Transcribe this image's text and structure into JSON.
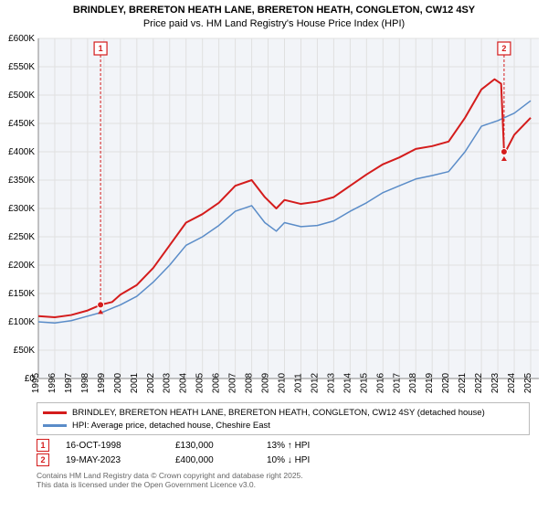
{
  "title_line1": "BRINDLEY, BRERETON HEATH LANE, BRERETON HEATH, CONGLETON, CW12 4SY",
  "title_line2": "Price paid vs. HM Land Registry's House Price Index (HPI)",
  "chart": {
    "type": "line",
    "background_color": "#ffffff",
    "plot_bg": "#f2f4f8",
    "grid_color": "#e0e0e0",
    "axis_color": "#888888",
    "x_years": [
      1995,
      1996,
      1997,
      1998,
      1999,
      2000,
      2001,
      2002,
      2003,
      2004,
      2005,
      2006,
      2007,
      2008,
      2009,
      2010,
      2011,
      2012,
      2013,
      2014,
      2015,
      2016,
      2017,
      2018,
      2019,
      2020,
      2021,
      2022,
      2023,
      2024,
      2025
    ],
    "y_ticks": [
      "£0",
      "£50K",
      "£100K",
      "£150K",
      "£200K",
      "£250K",
      "£300K",
      "£350K",
      "£400K",
      "£450K",
      "£500K",
      "£550K",
      "£600K"
    ],
    "ylim": [
      0,
      600
    ],
    "xlim": [
      1995,
      2025.5
    ],
    "y_step": 50,
    "series": [
      {
        "name": "property",
        "color": "#d41c1c",
        "width": 2,
        "points": [
          [
            1995,
            110
          ],
          [
            1996,
            108
          ],
          [
            1997,
            112
          ],
          [
            1998,
            120
          ],
          [
            1998.8,
            130
          ],
          [
            1999.5,
            135
          ],
          [
            2000,
            148
          ],
          [
            2001,
            165
          ],
          [
            2002,
            195
          ],
          [
            2003,
            235
          ],
          [
            2004,
            275
          ],
          [
            2005,
            290
          ],
          [
            2006,
            310
          ],
          [
            2007,
            340
          ],
          [
            2008,
            350
          ],
          [
            2008.8,
            320
          ],
          [
            2009.5,
            300
          ],
          [
            2010,
            315
          ],
          [
            2011,
            308
          ],
          [
            2012,
            312
          ],
          [
            2013,
            320
          ],
          [
            2014,
            340
          ],
          [
            2015,
            360
          ],
          [
            2016,
            378
          ],
          [
            2017,
            390
          ],
          [
            2018,
            405
          ],
          [
            2019,
            410
          ],
          [
            2020,
            418
          ],
          [
            2021,
            460
          ],
          [
            2022,
            510
          ],
          [
            2022.8,
            528
          ],
          [
            2023.2,
            520
          ],
          [
            2023.38,
            400
          ],
          [
            2023.5,
            402
          ],
          [
            2024,
            430
          ],
          [
            2025,
            460
          ]
        ]
      },
      {
        "name": "hpi",
        "color": "#5a8cc8",
        "width": 1.5,
        "points": [
          [
            1995,
            100
          ],
          [
            1996,
            98
          ],
          [
            1997,
            102
          ],
          [
            1998,
            110
          ],
          [
            1999,
            118
          ],
          [
            2000,
            130
          ],
          [
            2001,
            145
          ],
          [
            2002,
            170
          ],
          [
            2003,
            200
          ],
          [
            2004,
            235
          ],
          [
            2005,
            250
          ],
          [
            2006,
            270
          ],
          [
            2007,
            295
          ],
          [
            2008,
            305
          ],
          [
            2008.8,
            275
          ],
          [
            2009.5,
            260
          ],
          [
            2010,
            275
          ],
          [
            2011,
            268
          ],
          [
            2012,
            270
          ],
          [
            2013,
            278
          ],
          [
            2014,
            295
          ],
          [
            2015,
            310
          ],
          [
            2016,
            328
          ],
          [
            2017,
            340
          ],
          [
            2018,
            352
          ],
          [
            2019,
            358
          ],
          [
            2020,
            365
          ],
          [
            2021,
            400
          ],
          [
            2022,
            445
          ],
          [
            2023,
            455
          ],
          [
            2024,
            468
          ],
          [
            2025,
            490
          ]
        ]
      }
    ],
    "markers": [
      {
        "n": "1",
        "year": 1998.79,
        "price": 130
      },
      {
        "n": "2",
        "year": 2023.38,
        "price": 400
      }
    ]
  },
  "legend": {
    "items": [
      {
        "color": "#d41c1c",
        "label": "BRINDLEY, BRERETON HEATH LANE, BRERETON HEATH, CONGLETON, CW12 4SY (detached house)"
      },
      {
        "color": "#5a8cc8",
        "label": "HPI: Average price, detached house, Cheshire East"
      }
    ]
  },
  "transactions": [
    {
      "n": "1",
      "date": "16-OCT-1998",
      "price": "£130,000",
      "diff": "13% ↑ HPI"
    },
    {
      "n": "2",
      "date": "19-MAY-2023",
      "price": "£400,000",
      "diff": "10% ↓ HPI"
    }
  ],
  "footer_l1": "Contains HM Land Registry data © Crown copyright and database right 2025.",
  "footer_l2": "This data is licensed under the Open Government Licence v3.0."
}
